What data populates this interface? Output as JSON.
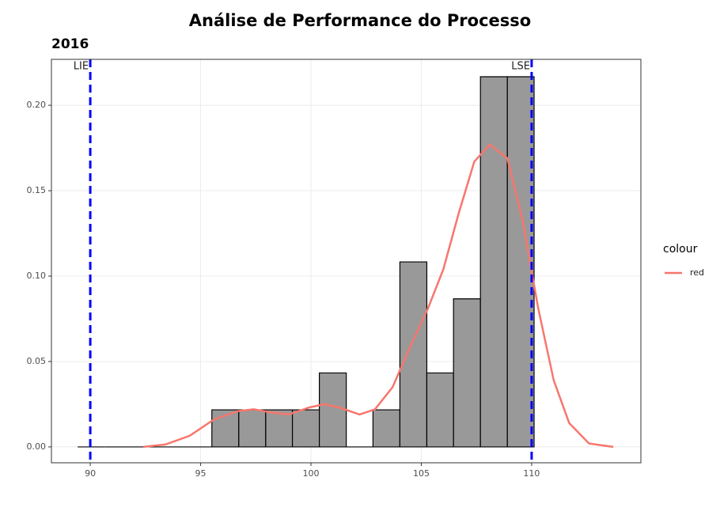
{
  "chart_data": {
    "type": "histogram",
    "title": "Análise de Performance do Processo",
    "subtitle": "2016",
    "bins": [
      89.43,
      90.65,
      91.86,
      93.08,
      94.3,
      95.51,
      96.73,
      97.95,
      99.16,
      100.38,
      101.6,
      102.81,
      104.03,
      105.25,
      106.46,
      107.68,
      108.9,
      110.11
    ],
    "values": [
      0,
      0,
      0,
      0,
      0,
      0.0217,
      0.0217,
      0.0217,
      0.0217,
      0.0433,
      0,
      0.0217,
      0.1083,
      0.0433,
      0.0867,
      0.2167,
      0.2167
    ],
    "color": "#999999",
    "density": {
      "name": "red",
      "color": "#f8766d",
      "x": [
        92.4,
        93.4,
        94.5,
        95.6,
        96.7,
        97.4,
        98.3,
        99.0,
        99.9,
        100.6,
        101.3,
        102.2,
        102.9,
        103.7,
        104.4,
        105.3,
        106.0,
        106.7,
        107.4,
        108.1,
        108.9,
        109.6,
        110.3,
        111.0,
        111.7,
        112.6,
        113.7
      ],
      "y": [
        0,
        0.0014,
        0.0065,
        0.016,
        0.021,
        0.022,
        0.02,
        0.019,
        0.023,
        0.025,
        0.023,
        0.019,
        0.022,
        0.035,
        0.056,
        0.081,
        0.104,
        0.137,
        0.167,
        0.177,
        0.169,
        0.132,
        0.081,
        0.039,
        0.014,
        0.002,
        0
      ]
    },
    "vlines": [
      {
        "value": 90,
        "label": "LIE",
        "color": "#0000ff"
      },
      {
        "value": 110,
        "label": "LSE",
        "color": "#0000ff"
      }
    ],
    "legend": {
      "title": "colour"
    },
    "xlim": [
      88.24,
      114.95
    ],
    "ylim": [
      -0.0093,
      0.2269
    ],
    "xticks": [
      90,
      95,
      100,
      105,
      110
    ],
    "yticks": [
      {
        "value": 0,
        "label": "0.00"
      },
      {
        "value": 0.05,
        "label": "0.05"
      },
      {
        "value": 0.1,
        "label": "0.10"
      },
      {
        "value": 0.15,
        "label": "0.15"
      },
      {
        "value": 0.2,
        "label": "0.20"
      }
    ],
    "grid": true
  }
}
